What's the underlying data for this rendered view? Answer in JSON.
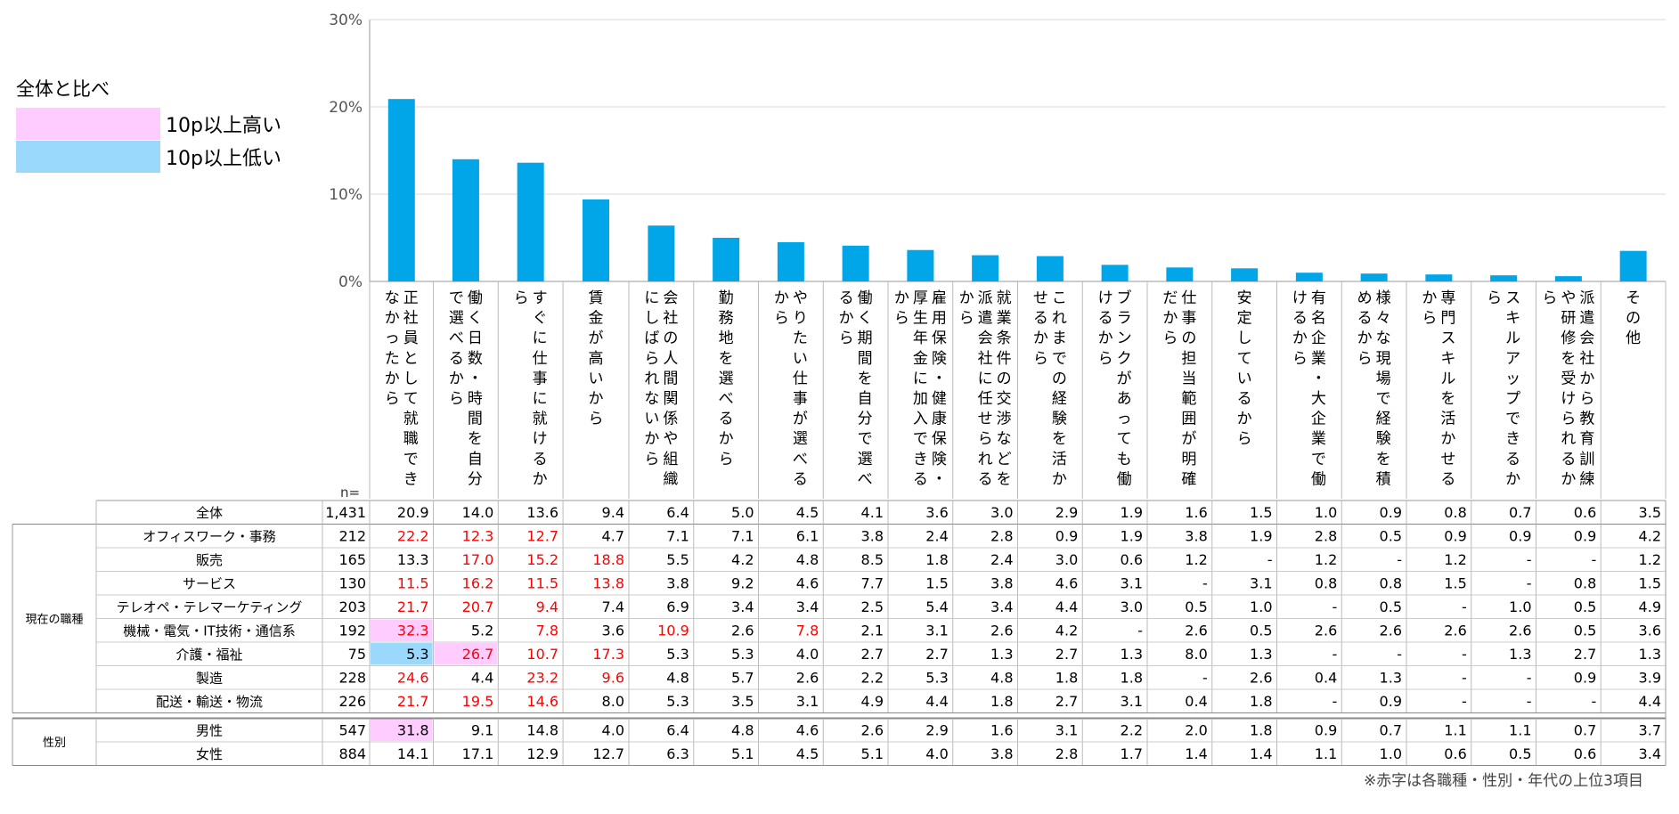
{
  "legend": {
    "title": "全体と比べ",
    "items": [
      {
        "label": "10p以上高い",
        "color": "#ffccff"
      },
      {
        "label": "10p以上低い",
        "color": "#9ad9fb"
      }
    ]
  },
  "note": "※赤字は各職種・性別・年代の上位3項目",
  "n_label": "n=",
  "colors": {
    "bar": "#00a6e8",
    "top3": "#ff0000"
  },
  "chart_data": {
    "type": "bar",
    "categories": [
      "正社員として就職できなかったから",
      "働く日数・時間を自分で選べるから",
      "すぐに仕事に就けるから",
      "賃金が高いから",
      "会社の人間関係や組織にしばられないから",
      "勤務地を選べるから",
      "やりたい仕事が選べるから",
      "働く期間を自分で選べるから",
      "雇用保険・健康保険・厚生年金に加入できるから",
      "就業条件の交渉などを派遣会社に任せられるから",
      "これまでの経験を活かせるから",
      "ブランクがあっても働けるから",
      "仕事の担当範囲が明確だから",
      "安定しているから",
      "有名企業・大企業で働けるから",
      "様々な現場で経験を積めるから",
      "専門スキルを活かせるから",
      "スキルアップできるから",
      "派遣会社から教育訓練や研修を受けられるから",
      "その他"
    ],
    "values": [
      20.9,
      14.0,
      13.6,
      9.4,
      6.4,
      5.0,
      4.5,
      4.1,
      3.6,
      3.0,
      2.9,
      1.9,
      1.6,
      1.5,
      1.0,
      0.9,
      0.8,
      0.7,
      0.6,
      3.5
    ],
    "yticks": [
      "0%",
      "10%",
      "20%",
      "30%"
    ],
    "ylim": [
      0,
      30
    ],
    "grid": true
  },
  "table": {
    "total": {
      "label": "全体",
      "n": "1,431",
      "values": [
        "20.9",
        "14.0",
        "13.6",
        "9.4",
        "6.4",
        "5.0",
        "4.5",
        "4.1",
        "3.6",
        "3.0",
        "2.9",
        "1.9",
        "1.6",
        "1.5",
        "1.0",
        "0.9",
        "0.8",
        "0.7",
        "0.6",
        "3.5"
      ]
    },
    "groups": [
      {
        "label": "現在の職種",
        "rows": [
          {
            "label": "オフィスワーク・事務",
            "n": "212",
            "values": [
              "22.2",
              "12.3",
              "12.7",
              "4.7",
              "7.1",
              "7.1",
              "6.1",
              "3.8",
              "2.4",
              "2.8",
              "0.9",
              "1.9",
              "3.8",
              "1.9",
              "2.8",
              "0.5",
              "0.9",
              "0.9",
              "0.9",
              "4.2"
            ],
            "red": [
              0,
              1,
              2
            ],
            "hi": [],
            "lo": []
          },
          {
            "label": "販売",
            "n": "165",
            "values": [
              "13.3",
              "17.0",
              "15.2",
              "18.8",
              "5.5",
              "4.2",
              "4.8",
              "8.5",
              "1.8",
              "2.4",
              "3.0",
              "0.6",
              "1.2",
              "-",
              "1.2",
              "-",
              "1.2",
              "-",
              "-",
              "1.2"
            ],
            "red": [
              1,
              2,
              3
            ],
            "hi": [],
            "lo": []
          },
          {
            "label": "サービス",
            "n": "130",
            "values": [
              "11.5",
              "16.2",
              "11.5",
              "13.8",
              "3.8",
              "9.2",
              "4.6",
              "7.7",
              "1.5",
              "3.8",
              "4.6",
              "3.1",
              "-",
              "3.1",
              "0.8",
              "0.8",
              "1.5",
              "-",
              "0.8",
              "1.5"
            ],
            "red": [
              0,
              1,
              2,
              3
            ],
            "hi": [],
            "lo": []
          },
          {
            "label": "テレオペ・テレマーケティング",
            "n": "203",
            "values": [
              "21.7",
              "20.7",
              "9.4",
              "7.4",
              "6.9",
              "3.4",
              "3.4",
              "2.5",
              "5.4",
              "3.4",
              "4.4",
              "3.0",
              "0.5",
              "1.0",
              "-",
              "0.5",
              "-",
              "1.0",
              "0.5",
              "4.9"
            ],
            "red": [
              0,
              1,
              2
            ],
            "hi": [],
            "lo": []
          },
          {
            "label": "機械・電気・IT技術・通信系",
            "n": "192",
            "values": [
              "32.3",
              "5.2",
              "7.8",
              "3.6",
              "10.9",
              "2.6",
              "7.8",
              "2.1",
              "3.1",
              "2.6",
              "4.2",
              "-",
              "2.6",
              "0.5",
              "2.6",
              "2.6",
              "2.6",
              "2.6",
              "0.5",
              "3.6"
            ],
            "red": [
              0,
              2,
              4,
              6
            ],
            "hi": [
              0
            ],
            "lo": []
          },
          {
            "label": "介護・福祉",
            "n": "75",
            "values": [
              "5.3",
              "26.7",
              "10.7",
              "17.3",
              "5.3",
              "5.3",
              "4.0",
              "2.7",
              "2.7",
              "1.3",
              "2.7",
              "1.3",
              "8.0",
              "1.3",
              "-",
              "-",
              "-",
              "1.3",
              "2.7",
              "1.3"
            ],
            "red": [
              1,
              2,
              3
            ],
            "hi": [
              1
            ],
            "lo": [
              0
            ]
          },
          {
            "label": "製造",
            "n": "228",
            "values": [
              "24.6",
              "4.4",
              "23.2",
              "9.6",
              "4.8",
              "5.7",
              "2.6",
              "2.2",
              "5.3",
              "4.8",
              "1.8",
              "1.8",
              "-",
              "2.6",
              "0.4",
              "1.3",
              "-",
              "-",
              "0.9",
              "3.9"
            ],
            "red": [
              0,
              2,
              3
            ],
            "hi": [],
            "lo": []
          },
          {
            "label": "配送・輸送・物流",
            "n": "226",
            "values": [
              "21.7",
              "19.5",
              "14.6",
              "8.0",
              "5.3",
              "3.5",
              "3.1",
              "4.9",
              "4.4",
              "1.8",
              "2.7",
              "3.1",
              "0.4",
              "1.8",
              "-",
              "0.9",
              "-",
              "-",
              "-",
              "4.4"
            ],
            "red": [
              0,
              1,
              2
            ],
            "hi": [],
            "lo": []
          }
        ]
      },
      {
        "label": "性別",
        "rows": [
          {
            "label": "男性",
            "n": "547",
            "values": [
              "31.8",
              "9.1",
              "14.8",
              "4.0",
              "6.4",
              "4.8",
              "4.6",
              "2.6",
              "2.9",
              "1.6",
              "3.1",
              "2.2",
              "2.0",
              "1.8",
              "0.9",
              "0.7",
              "1.1",
              "1.1",
              "0.7",
              "3.7"
            ],
            "red": [],
            "hi": [
              0
            ],
            "lo": []
          },
          {
            "label": "女性",
            "n": "884",
            "values": [
              "14.1",
              "17.1",
              "12.9",
              "12.7",
              "6.3",
              "5.1",
              "4.5",
              "5.1",
              "4.0",
              "3.8",
              "2.8",
              "1.7",
              "1.4",
              "1.4",
              "1.1",
              "1.0",
              "0.6",
              "0.5",
              "0.6",
              "3.4"
            ],
            "red": [],
            "hi": [],
            "lo": []
          }
        ]
      }
    ]
  }
}
